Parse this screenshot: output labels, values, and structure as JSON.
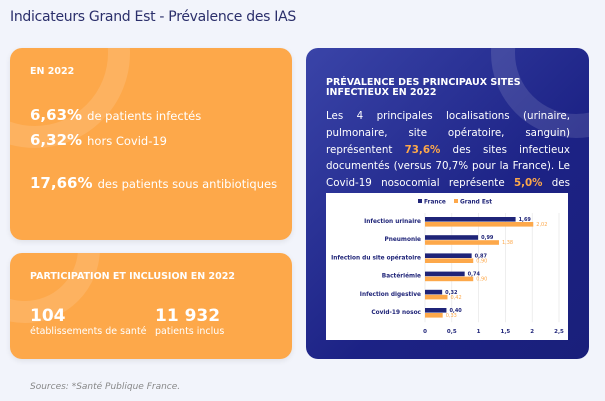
{
  "title": "Indicateurs Grand Est - Prévalence des IAS",
  "card1": {
    "heading": "EN 2022",
    "stats": [
      {
        "value": "6,63%",
        "label": "de patients infectés"
      },
      {
        "value": "6,32%",
        "label": "hors Covid-19"
      },
      {
        "value": "17,66%",
        "label": "des patients sous antibiotiques"
      }
    ]
  },
  "card2": {
    "heading": "PARTICIPATION ET INCLUSION EN 2022",
    "stats": [
      {
        "value": "104",
        "label": "établissements de santé"
      },
      {
        "value": "11 932",
        "label": "patients inclus"
      }
    ]
  },
  "card3": {
    "heading": "PRÉVALENCE DES PRINCIPAUX SITES INFECTIEUX EN 2022",
    "text_a": "Les 4 principales localisations (urinaire, pulmonaire, site opératoire, sanguin) représentent ",
    "hl1": "73,6%",
    "text_b": " des sites infectieux documentés (versus 70,7% pour la France). Le Covid-19 nosocomial représente ",
    "hl2": "5,0%",
    "text_c": " des infections."
  },
  "colors": {
    "france": "#1f2478",
    "grand_est": "#fda84a",
    "orange_card": "#fda84a",
    "navy_card": "#1c2285"
  },
  "chart_data": {
    "type": "bar",
    "orientation": "horizontal",
    "categories": [
      "Infection urinaire",
      "Pneumonie",
      "Infection du site opératoire",
      "Bactériémie",
      "Infection digestive",
      "Covid-19 nosoc"
    ],
    "series": [
      {
        "name": "France",
        "values": [
          1.69,
          0.99,
          0.87,
          0.74,
          0.32,
          0.4
        ],
        "labels": [
          "1,69",
          "0,99",
          "0,87",
          "0,74",
          "0,32",
          "0,40"
        ]
      },
      {
        "name": "Grand Est",
        "values": [
          2.02,
          1.38,
          0.9,
          0.9,
          0.42,
          0.33
        ],
        "labels": [
          "2,02",
          "1,38",
          "0,90",
          "0,90",
          "0,42",
          "0,33"
        ]
      }
    ],
    "xticks": [
      "0",
      "0,5",
      "1",
      "1,5",
      "2",
      "2,5"
    ],
    "xlim": [
      0,
      2.5
    ],
    "grid": true,
    "legend": "top"
  },
  "sources": "Sources: *Santé Publique France."
}
